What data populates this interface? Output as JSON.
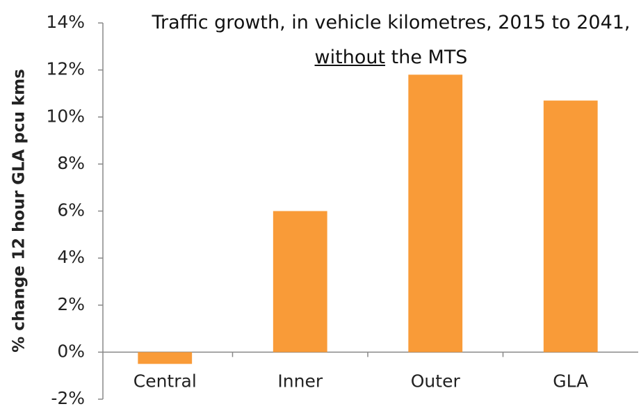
{
  "chart_data": {
    "type": "bar",
    "title": [
      "Traffic growth, in vehicle kilometres, 2015 to 2041, ",
      "without",
      " the MTS"
    ],
    "y_label": "% change 12 hour GLA pcu kms",
    "categories": [
      "Central",
      "Inner",
      "Outer",
      "GLA"
    ],
    "values": [
      -0.5,
      6.0,
      11.8,
      10.7
    ],
    "color": "#f99b38",
    "ylim": [
      -2,
      14
    ],
    "yticks": [
      {
        "value": -2,
        "label": "-2%"
      },
      {
        "value": 0,
        "label": "0%"
      },
      {
        "value": 2,
        "label": "2%"
      },
      {
        "value": 4,
        "label": "4%"
      },
      {
        "value": 6,
        "label": "6%"
      },
      {
        "value": 8,
        "label": "8%"
      },
      {
        "value": 10,
        "label": "10%"
      },
      {
        "value": 12,
        "label": "12%"
      },
      {
        "value": 14,
        "label": "14%"
      }
    ],
    "grid": false
  }
}
